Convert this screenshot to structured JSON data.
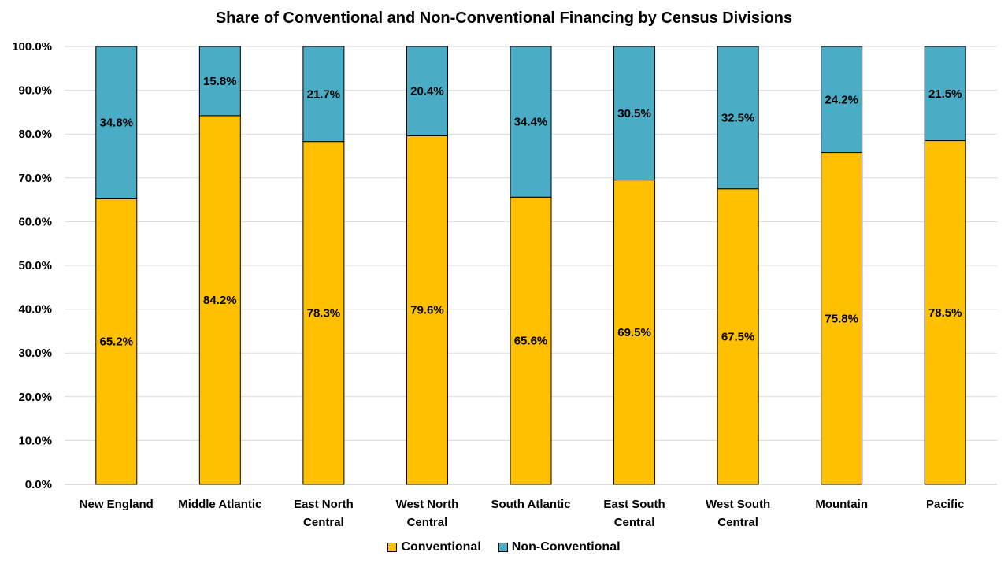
{
  "colors": {
    "conventional": "#FFC000",
    "non_conventional": "#4BACC6",
    "grid": "#d9d9d9",
    "axis": "#bfbfbf"
  },
  "chart_data": {
    "type": "bar",
    "stacked": true,
    "title": "Share of Conventional and Non-Conventional Financing by Census Divisions",
    "xlabel": "",
    "ylabel": "",
    "ylim": [
      0,
      100
    ],
    "y_ticks": [
      "0.0%",
      "10.0%",
      "20.0%",
      "30.0%",
      "40.0%",
      "50.0%",
      "60.0%",
      "70.0%",
      "80.0%",
      "90.0%",
      "100.0%"
    ],
    "categories": [
      [
        "New England"
      ],
      [
        "Middle Atlantic"
      ],
      [
        "East North",
        "Central"
      ],
      [
        "West North",
        "Central"
      ],
      [
        "South Atlantic"
      ],
      [
        "East South",
        "Central"
      ],
      [
        "West South",
        "Central"
      ],
      [
        "Mountain"
      ],
      [
        "Pacific"
      ]
    ],
    "series": [
      {
        "name": "Conventional",
        "values": [
          65.2,
          84.2,
          78.3,
          79.6,
          65.6,
          69.5,
          67.5,
          75.8,
          78.5
        ],
        "labels": [
          "65.2%",
          "84.2%",
          "78.3%",
          "79.6%",
          "65.6%",
          "69.5%",
          "67.5%",
          "75.8%",
          "78.5%"
        ]
      },
      {
        "name": "Non-Conventional",
        "values": [
          34.8,
          15.8,
          21.7,
          20.4,
          34.4,
          30.5,
          32.5,
          24.2,
          21.5
        ],
        "labels": [
          "34.8%",
          "15.8%",
          "21.7%",
          "20.4%",
          "34.4%",
          "30.5%",
          "32.5%",
          "24.2%",
          "21.5%"
        ]
      }
    ],
    "grid": true,
    "legend_position": "bottom"
  }
}
